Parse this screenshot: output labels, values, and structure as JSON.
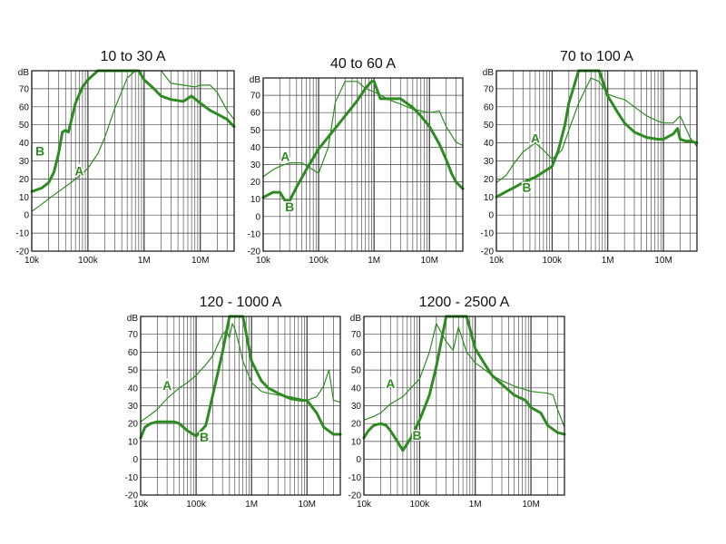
{
  "chart_data": [
    {
      "type": "line",
      "title": "10 to 30 A",
      "ylabel": "dB",
      "x_scale": "log",
      "xlim": [
        10000,
        40000000
      ],
      "ylim": [
        -20,
        80
      ],
      "yticks": [
        -20,
        -10,
        0,
        10,
        20,
        30,
        40,
        50,
        60,
        70
      ],
      "xtick_labels": [
        {
          "value": 10000,
          "label": "10k"
        },
        {
          "value": 100000,
          "label": "100k"
        },
        {
          "value": 1000000,
          "label": "1M"
        },
        {
          "value": 10000000,
          "label": "10M"
        }
      ],
      "grid": true,
      "line_color": "#2e8b22",
      "series": [
        {
          "name": "A",
          "emphasis": "thin",
          "x": [
            10000,
            15000,
            20000,
            30000,
            50000,
            80000,
            100000,
            150000,
            200000,
            300000,
            500000,
            700000,
            800000,
            1000000,
            2000000,
            3000000,
            5000000,
            8000000,
            10000000,
            15000000,
            20000000,
            30000000,
            40000000
          ],
          "y": [
            2,
            6,
            9,
            13,
            18,
            23,
            26,
            34,
            43,
            59,
            76,
            80,
            80,
            80,
            80,
            73,
            72,
            71,
            72,
            72,
            68,
            58,
            53
          ]
        },
        {
          "name": "B",
          "emphasis": "bold",
          "x": [
            10000,
            15000,
            20000,
            25000,
            30000,
            35000,
            40000,
            45000,
            60000,
            80000,
            100000,
            150000,
            200000,
            300000,
            500000,
            800000,
            1000000,
            1500000,
            2000000,
            3000000,
            5000000,
            7000000,
            10000000,
            15000000,
            20000000,
            30000000,
            40000000
          ],
          "y": [
            13,
            15,
            18,
            24,
            34,
            46,
            47,
            46,
            62,
            71,
            75,
            80,
            80,
            80,
            80,
            80,
            75,
            70,
            66,
            64,
            63,
            66,
            62,
            58,
            56,
            53,
            49
          ]
        }
      ],
      "annotations": [
        {
          "text": "A",
          "x": 70000,
          "y": 22
        },
        {
          "text": "B",
          "x": 14000,
          "y": 33
        }
      ]
    },
    {
      "type": "line",
      "title": "40 to 60 A",
      "ylabel": "dB",
      "x_scale": "log",
      "xlim": [
        10000,
        40000000
      ],
      "ylim": [
        -20,
        80
      ],
      "yticks": [
        -20,
        -10,
        0,
        10,
        20,
        30,
        40,
        50,
        60,
        70
      ],
      "xtick_labels": [
        {
          "value": 10000,
          "label": "10k"
        },
        {
          "value": 100000,
          "label": "100k"
        },
        {
          "value": 1000000,
          "label": "1M"
        },
        {
          "value": 10000000,
          "label": "10M"
        }
      ],
      "grid": true,
      "line_color": "#2e8b22",
      "series": [
        {
          "name": "A",
          "emphasis": "thin",
          "x": [
            10000,
            15000,
            20000,
            30000,
            50000,
            70000,
            100000,
            150000,
            200000,
            300000,
            500000,
            700000,
            1000000,
            2000000,
            3000000,
            5000000,
            10000000,
            15000000,
            20000000,
            30000000,
            40000000
          ],
          "y": [
            23,
            27,
            29,
            31,
            31,
            28,
            25,
            40,
            66,
            78,
            78,
            74,
            72,
            67,
            65,
            62,
            60,
            61,
            52,
            43,
            41
          ]
        },
        {
          "name": "B",
          "emphasis": "bold",
          "x": [
            10000,
            15000,
            20000,
            25000,
            30000,
            40000,
            60000,
            100000,
            150000,
            200000,
            300000,
            500000,
            700000,
            900000,
            1000000,
            1300000,
            2000000,
            3000000,
            5000000,
            7000000,
            10000000,
            15000000,
            20000000,
            25000000,
            30000000,
            40000000
          ],
          "y": [
            11,
            14,
            14,
            9,
            9,
            17,
            27,
            39,
            46,
            51,
            58,
            67,
            74,
            78,
            78,
            68,
            68,
            68,
            63,
            58,
            52,
            42,
            33,
            25,
            20,
            16
          ]
        }
      ],
      "annotations": [
        {
          "text": "A",
          "x": 25000,
          "y": 32
        },
        {
          "text": "B",
          "x": 30000,
          "y": 3
        }
      ]
    },
    {
      "type": "line",
      "title": "70 to 100 A",
      "ylabel": "dB",
      "x_scale": "log",
      "xlim": [
        10000,
        40000000
      ],
      "ylim": [
        -20,
        80
      ],
      "yticks": [
        -20,
        -10,
        0,
        10,
        20,
        30,
        40,
        50,
        60,
        70
      ],
      "xtick_labels": [
        {
          "value": 10000,
          "label": "10k"
        },
        {
          "value": 100000,
          "label": "100k"
        },
        {
          "value": 1000000,
          "label": "1M"
        },
        {
          "value": 10000000,
          "label": "10M"
        }
      ],
      "grid": true,
      "line_color": "#2e8b22",
      "series": [
        {
          "name": "A",
          "emphasis": "thin",
          "x": [
            10000,
            15000,
            20000,
            30000,
            50000,
            70000,
            100000,
            150000,
            200000,
            300000,
            500000,
            700000,
            1000000,
            1500000,
            2000000,
            3000000,
            5000000,
            8000000,
            10000000,
            15000000,
            20000000,
            30000000,
            40000000
          ],
          "y": [
            18,
            22,
            28,
            35,
            40,
            36,
            31,
            36,
            47,
            62,
            76,
            74,
            67,
            65,
            64,
            60,
            55,
            52,
            51,
            51,
            55,
            43,
            38
          ]
        },
        {
          "name": "B",
          "emphasis": "bold",
          "x": [
            10000,
            15000,
            20000,
            30000,
            50000,
            80000,
            100000,
            130000,
            170000,
            200000,
            300000,
            500000,
            700000,
            1000000,
            1500000,
            2000000,
            3000000,
            5000000,
            8000000,
            10000000,
            15000000,
            18000000,
            20000000,
            25000000,
            30000000,
            40000000
          ],
          "y": [
            10,
            13,
            15,
            18,
            21,
            25,
            27,
            36,
            50,
            62,
            80,
            80,
            80,
            66,
            57,
            51,
            46,
            43,
            42,
            42,
            45,
            48,
            42,
            41,
            41,
            40
          ]
        }
      ],
      "annotations": [
        {
          "text": "A",
          "x": 50000,
          "y": 40
        },
        {
          "text": "B",
          "x": 35000,
          "y": 13
        }
      ]
    },
    {
      "type": "line",
      "title": "120 - 1000 A",
      "ylabel": "dB",
      "x_scale": "log",
      "xlim": [
        10000,
        40000000
      ],
      "ylim": [
        -20,
        80
      ],
      "yticks": [
        -20,
        -10,
        0,
        10,
        20,
        30,
        40,
        50,
        60,
        70
      ],
      "xtick_labels": [
        {
          "value": 10000,
          "label": "10k"
        },
        {
          "value": 100000,
          "label": "100k"
        },
        {
          "value": 1000000,
          "label": "1M"
        },
        {
          "value": 10000000,
          "label": "10M"
        }
      ],
      "grid": true,
      "line_color": "#2e8b22",
      "series": [
        {
          "name": "A",
          "emphasis": "thin",
          "x": [
            10000,
            15000,
            20000,
            30000,
            50000,
            70000,
            100000,
            150000,
            200000,
            300000,
            350000,
            400000,
            450000,
            500000,
            600000,
            700000,
            1000000,
            1500000,
            2000000,
            3000000,
            5000000,
            10000000,
            15000000,
            20000000,
            25000000,
            30000000,
            40000000
          ],
          "y": [
            21,
            25,
            28,
            34,
            40,
            43,
            47,
            53,
            58,
            70,
            72,
            68,
            76,
            73,
            64,
            55,
            43,
            38,
            37,
            36,
            35,
            33,
            35,
            41,
            50,
            33,
            32
          ]
        },
        {
          "name": "B",
          "emphasis": "bold",
          "x": [
            10000,
            12000,
            15000,
            20000,
            30000,
            40000,
            50000,
            70000,
            100000,
            150000,
            200000,
            300000,
            400000,
            600000,
            700000,
            1000000,
            1500000,
            2000000,
            3000000,
            5000000,
            8000000,
            10000000,
            15000000,
            20000000,
            30000000,
            40000000
          ],
          "y": [
            12,
            18,
            20,
            21,
            21,
            21,
            20,
            16,
            13,
            19,
            36,
            60,
            80,
            80,
            80,
            55,
            44,
            40,
            37,
            34,
            33,
            33,
            26,
            18,
            14,
            14
          ]
        }
      ],
      "annotations": [
        {
          "text": "A",
          "x": 30000,
          "y": 39
        },
        {
          "text": "B",
          "x": 140000,
          "y": 10
        }
      ]
    },
    {
      "type": "line",
      "title": "1200 - 2500 A",
      "ylabel": "dB",
      "x_scale": "log",
      "xlim": [
        10000,
        40000000
      ],
      "ylim": [
        -20,
        80
      ],
      "yticks": [
        -20,
        -10,
        0,
        10,
        20,
        30,
        40,
        50,
        60,
        70
      ],
      "xtick_labels": [
        {
          "value": 10000,
          "label": "10k"
        },
        {
          "value": 100000,
          "label": "100k"
        },
        {
          "value": 1000000,
          "label": "1M"
        },
        {
          "value": 10000000,
          "label": "10M"
        }
      ],
      "grid": true,
      "line_color": "#2e8b22",
      "series": [
        {
          "name": "A",
          "emphasis": "thin",
          "x": [
            10000,
            15000,
            20000,
            30000,
            50000,
            70000,
            100000,
            150000,
            200000,
            300000,
            400000,
            500000,
            700000,
            1000000,
            1500000,
            2000000,
            3000000,
            5000000,
            10000000,
            20000000,
            25000000,
            30000000,
            40000000
          ],
          "y": [
            22,
            24,
            26,
            31,
            35,
            40,
            45,
            60,
            76,
            66,
            61,
            74,
            60,
            54,
            50,
            47,
            44,
            41,
            38,
            37,
            36,
            28,
            18
          ]
        },
        {
          "name": "B",
          "emphasis": "bold",
          "x": [
            10000,
            12000,
            15000,
            20000,
            25000,
            30000,
            40000,
            50000,
            70000,
            100000,
            150000,
            200000,
            300000,
            500000,
            700000,
            1000000,
            1500000,
            2000000,
            3000000,
            5000000,
            8000000,
            10000000,
            15000000,
            20000000,
            30000000,
            40000000
          ],
          "y": [
            12,
            16,
            19,
            20,
            19,
            16,
            10,
            5,
            12,
            22,
            36,
            52,
            80,
            80,
            80,
            62,
            53,
            47,
            42,
            36,
            33,
            29,
            26,
            19,
            15,
            14
          ]
        }
      ],
      "annotations": [
        {
          "text": "A",
          "x": 30000,
          "y": 40
        },
        {
          "text": "B",
          "x": 90000,
          "y": 11
        }
      ]
    }
  ]
}
